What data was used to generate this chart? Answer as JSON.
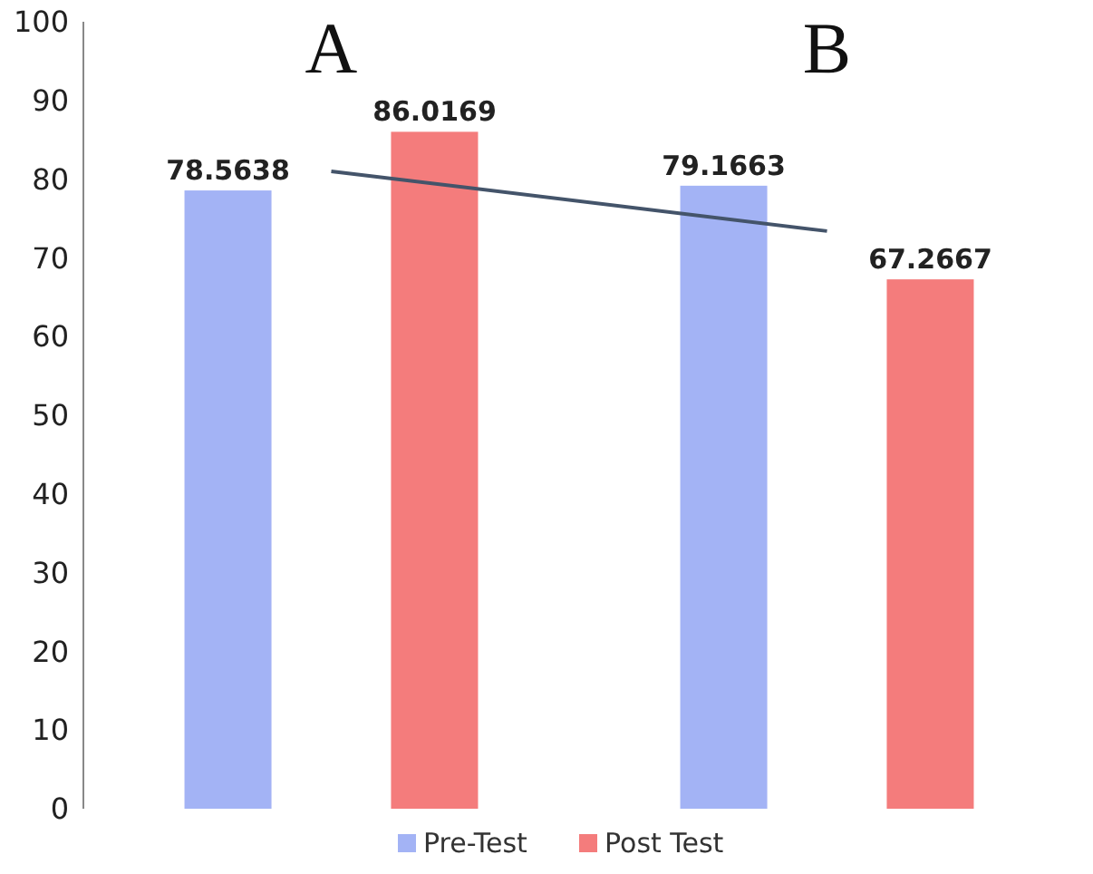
{
  "chart_data": {
    "type": "bar",
    "categories": [
      "A",
      "B"
    ],
    "series": [
      {
        "name": "Pre-Test",
        "color": "#a3b3f5",
        "values": [
          78.5638,
          79.1663
        ],
        "value_labels": [
          "78.5638",
          "79.1663"
        ]
      },
      {
        "name": "Post Test",
        "color": "#f47c7c",
        "values": [
          86.0169,
          67.2667
        ],
        "value_labels": [
          "86.0169",
          "67.2667"
        ]
      },
      {
        "type": "line",
        "color": "#44546a",
        "x": [
          "A",
          "B"
        ],
        "values": [
          81.0,
          73.4
        ]
      }
    ],
    "ylim": [
      0,
      100
    ],
    "yticks": [
      0,
      10,
      20,
      30,
      40,
      50,
      60,
      70,
      80,
      90,
      100
    ],
    "grid": false,
    "legend": "bottom"
  }
}
